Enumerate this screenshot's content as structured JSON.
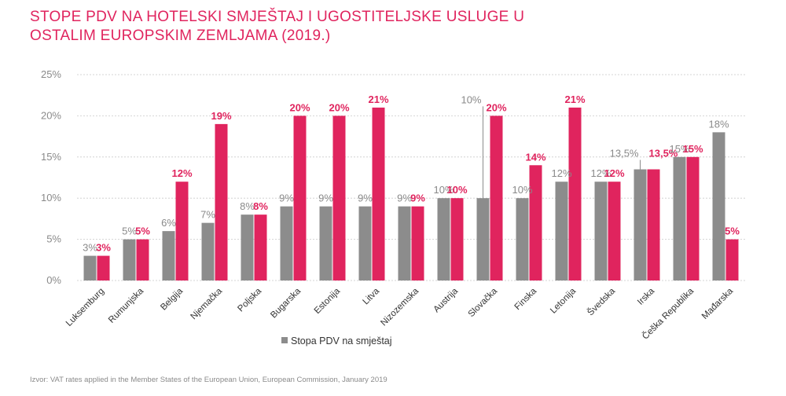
{
  "title": "STOPE PDV NA HOTELSKI SMJEŠTAJ I UGOSTITELJSKE USLUGE U OSTALIM EUROPSKIM ZEMLJAMA (2019.)",
  "source": "Izvor: VAT rates applied in the Member States of the European Union, European Commission, January 2019",
  "colors": {
    "accent": "#e0245e",
    "grey": "#8c8c8c",
    "axis_text": "#8a8a8a"
  },
  "chart_data": {
    "type": "bar",
    "categories": [
      "Luksemburg",
      "Rumunjska",
      "Belgija",
      "Njemačka",
      "Poljska",
      "Bugarska",
      "Estonija",
      "Litva",
      "Nizozemska",
      "Austrija",
      "Slovačka",
      "Finska",
      "Letonija",
      "Švedska",
      "Irska",
      "Češka Republika",
      "Mađarska"
    ],
    "series": [
      {
        "name": "Stopa PDV na smještaj",
        "color": "#8c8c8c",
        "values": [
          3,
          5,
          6,
          7,
          8,
          9,
          9,
          9,
          9,
          10,
          10,
          10,
          12,
          12,
          13.5,
          15,
          18
        ],
        "labels": [
          "3%",
          "5%",
          "6%",
          "7%",
          "8%",
          "9%",
          "9%",
          "9%",
          "9%",
          "10%",
          "10%",
          "10%",
          "12%",
          "12%",
          "13,5%",
          "15%",
          "18%"
        ]
      },
      {
        "name": "",
        "color": "#e0245e",
        "values": [
          3,
          5,
          12,
          19,
          8,
          20,
          20,
          21,
          9,
          10,
          20,
          14,
          21,
          12,
          13.5,
          15,
          5
        ],
        "labels": [
          "3%",
          "5%",
          "12%",
          "19%",
          "8%",
          "20%",
          "20%",
          "21%",
          "9%",
          "10%",
          "20%",
          "14%",
          "21%",
          "12%",
          "13,5%",
          "15%",
          "5%"
        ]
      }
    ],
    "y_ticks": [
      "0%",
      "5%",
      "10%",
      "15%",
      "20%",
      "25%"
    ],
    "ylim": [
      0,
      25
    ],
    "grid": true,
    "legend": {
      "position": "bottom-center",
      "entries": [
        "Stopa PDV na smještaj"
      ]
    }
  }
}
